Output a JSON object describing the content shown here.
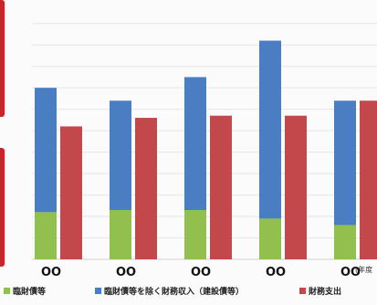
{
  "chart_data": {
    "type": "bar",
    "title": "",
    "xlabel": "",
    "ylabel": "",
    "categories": [
      "OO",
      "OO",
      "OO",
      "OO",
      "OO"
    ],
    "x_unit_label": "(年度",
    "stacked_series": [
      {
        "name": "臨財債等",
        "color": "#92c04f",
        "values": [
          22,
          23,
          23,
          19,
          16
        ]
      },
      {
        "name": "臨財債等を除く財務収入（建設債等）",
        "color": "#4a7ec3",
        "values": [
          58,
          51,
          62,
          83,
          58
        ]
      }
    ],
    "side_series": {
      "name": "財務支出",
      "color": "#c2484b",
      "values": [
        62,
        66,
        67,
        67,
        74
      ]
    },
    "grid": true,
    "ylim": [
      0,
      115
    ]
  }
}
